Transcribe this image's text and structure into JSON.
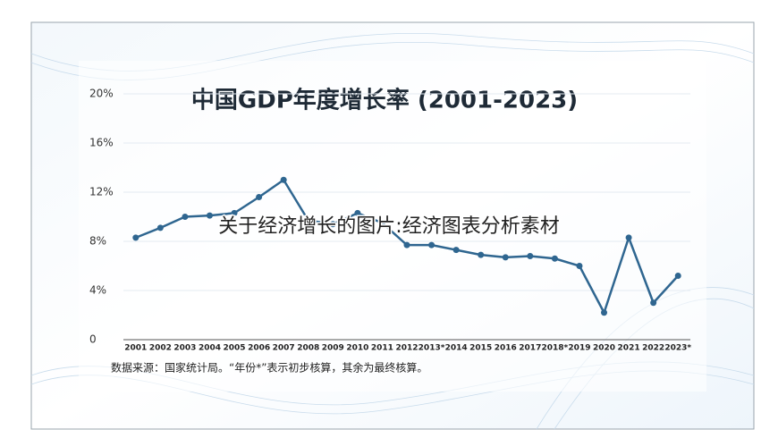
{
  "chart_data": {
    "type": "line",
    "title": "中国GDP年度增长率 (2001-2023)",
    "note": "数据来源：国家统计局。“年份*”表示初步核算，其余为最终核算。",
    "caption": "关于经济增长的图片:经济图表分析素材",
    "categories": [
      "2001",
      "2002",
      "2003",
      "2004",
      "2005",
      "2006",
      "2007",
      "2008",
      "2009",
      "2010",
      "2011",
      "2012",
      "2013*",
      "2014",
      "2015",
      "2016",
      "2017",
      "2018*",
      "2019",
      "2020",
      "2021",
      "2022",
      "2023*"
    ],
    "values": [
      8.3,
      9.1,
      10.0,
      10.1,
      10.3,
      11.6,
      13.0,
      9.7,
      9.4,
      10.3,
      9.5,
      7.7,
      7.7,
      7.3,
      6.9,
      6.7,
      6.8,
      6.6,
      6.0,
      2.2,
      8.3,
      3.0,
      5.2
    ],
    "color": "#2f6690",
    "ylim": [
      0,
      20
    ],
    "yticks": [
      0,
      {
        "value": 4,
        "label": "4%"
      },
      {
        "value": 8,
        "label": "8%"
      },
      {
        "value": 12,
        "label": "12%"
      },
      {
        "value": 16,
        "label": "16%"
      },
      {
        "value": 20,
        "label": "20%"
      }
    ],
    "grid": true
  }
}
